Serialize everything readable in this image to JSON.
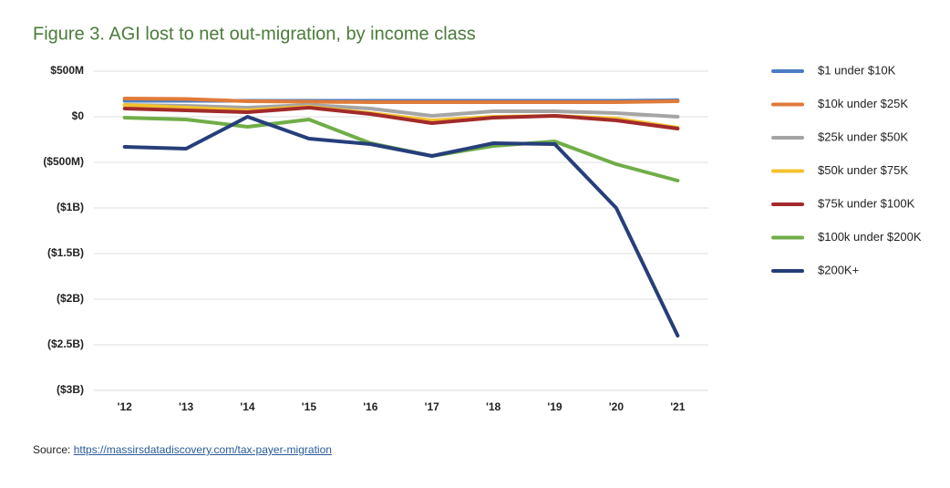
{
  "chart_data": {
    "type": "line",
    "title": "Figure 3. AGI lost to net out-migration, by income class",
    "categories": [
      "'12",
      "'13",
      "'14",
      "'15",
      "'16",
      "'17",
      "'18",
      "'19",
      "'20",
      "'21"
    ],
    "ylim": [
      -3000,
      500
    ],
    "yticks": [
      {
        "value": 500,
        "label": "$500M"
      },
      {
        "value": 0,
        "label": "$0"
      },
      {
        "value": -500,
        "label": "($500M)"
      },
      {
        "value": -1000,
        "label": "($1B)"
      },
      {
        "value": -1500,
        "label": "($1.5B)"
      },
      {
        "value": -2000,
        "label": "($2B)"
      },
      {
        "value": -2500,
        "label": "($2.5B)"
      },
      {
        "value": -3000,
        "label": "($3B)"
      }
    ],
    "grid": true,
    "legend": "right",
    "series": [
      {
        "name": "$1 under $10K",
        "color": "#4a7cc4",
        "values": [
          175,
          175,
          175,
          175,
          175,
          175,
          175,
          175,
          175,
          180
        ]
      },
      {
        "name": "$10k under $25K",
        "color": "#e07b39",
        "values": [
          200,
          195,
          170,
          165,
          160,
          160,
          160,
          160,
          160,
          170
        ]
      },
      {
        "name": "$25k under $50K",
        "color": "#a5a5a5",
        "values": [
          130,
          120,
          100,
          130,
          90,
          10,
          60,
          60,
          40,
          0
        ]
      },
      {
        "name": "$50k under $75K",
        "color": "#f2c12e",
        "values": [
          130,
          100,
          70,
          110,
          40,
          -40,
          0,
          10,
          -20,
          -120
        ]
      },
      {
        "name": "$75k under $100K",
        "color": "#a32a2a",
        "values": [
          90,
          70,
          50,
          100,
          30,
          -70,
          -10,
          10,
          -40,
          -130
        ]
      },
      {
        "name": "$100k under $200K",
        "color": "#70ad47",
        "values": [
          -10,
          -30,
          -110,
          -30,
          -290,
          -430,
          -320,
          -270,
          -520,
          -700
        ]
      },
      {
        "name": "$200K+",
        "color": "#263f7a",
        "values": [
          -330,
          -350,
          0,
          -240,
          -300,
          -430,
          -290,
          -300,
          -1000,
          -2400
        ]
      }
    ],
    "source_label": "Source:",
    "source_url": "https://massirsdatadiscovery.com/tax-payer-migration"
  }
}
